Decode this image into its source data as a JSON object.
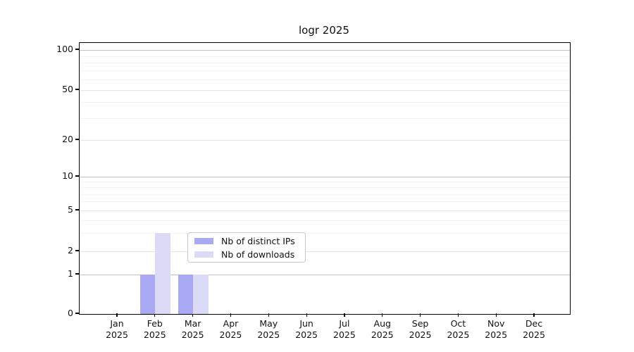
{
  "chart_data": {
    "type": "bar",
    "title": "logr 2025",
    "categories": [
      "Jan",
      "Feb",
      "Mar",
      "Apr",
      "May",
      "Jun",
      "Jul",
      "Aug",
      "Sep",
      "Oct",
      "Nov",
      "Dec"
    ],
    "category_year": "2025",
    "series": [
      {
        "name": "Nb of distinct IPs",
        "color": "#a9a9f4",
        "values": [
          0,
          1,
          1,
          0,
          0,
          0,
          0,
          0,
          0,
          0,
          0,
          0
        ]
      },
      {
        "name": "Nb of downloads",
        "color": "#dbdbf8",
        "values": [
          0,
          3,
          1,
          0,
          0,
          0,
          0,
          0,
          0,
          0,
          0,
          0
        ]
      }
    ],
    "y_axis": {
      "ticks": [
        0,
        1,
        2,
        5,
        10,
        20,
        50,
        100
      ],
      "minor_ticks": [
        3,
        4,
        6,
        7,
        8,
        9,
        30,
        40,
        60,
        70,
        80,
        90
      ],
      "scale": "log-like (0 drawn at baseline)",
      "power_of_ten_gridlines": [
        1,
        10,
        100
      ]
    },
    "x_axis": {
      "tick_count": 12
    },
    "legend": {
      "position": "bottom-center",
      "entries": [
        "Nb of distinct IPs",
        "Nb of downloads"
      ]
    },
    "grid": true,
    "colors": {
      "bar_distinct_ips": "#a9a9f4",
      "bar_downloads": "#dbdbf8",
      "grid_major": "#c0c0c0",
      "grid_mid": "#e4e4e4",
      "grid_minor": "#f2f2f2",
      "axis": "#000000"
    }
  }
}
